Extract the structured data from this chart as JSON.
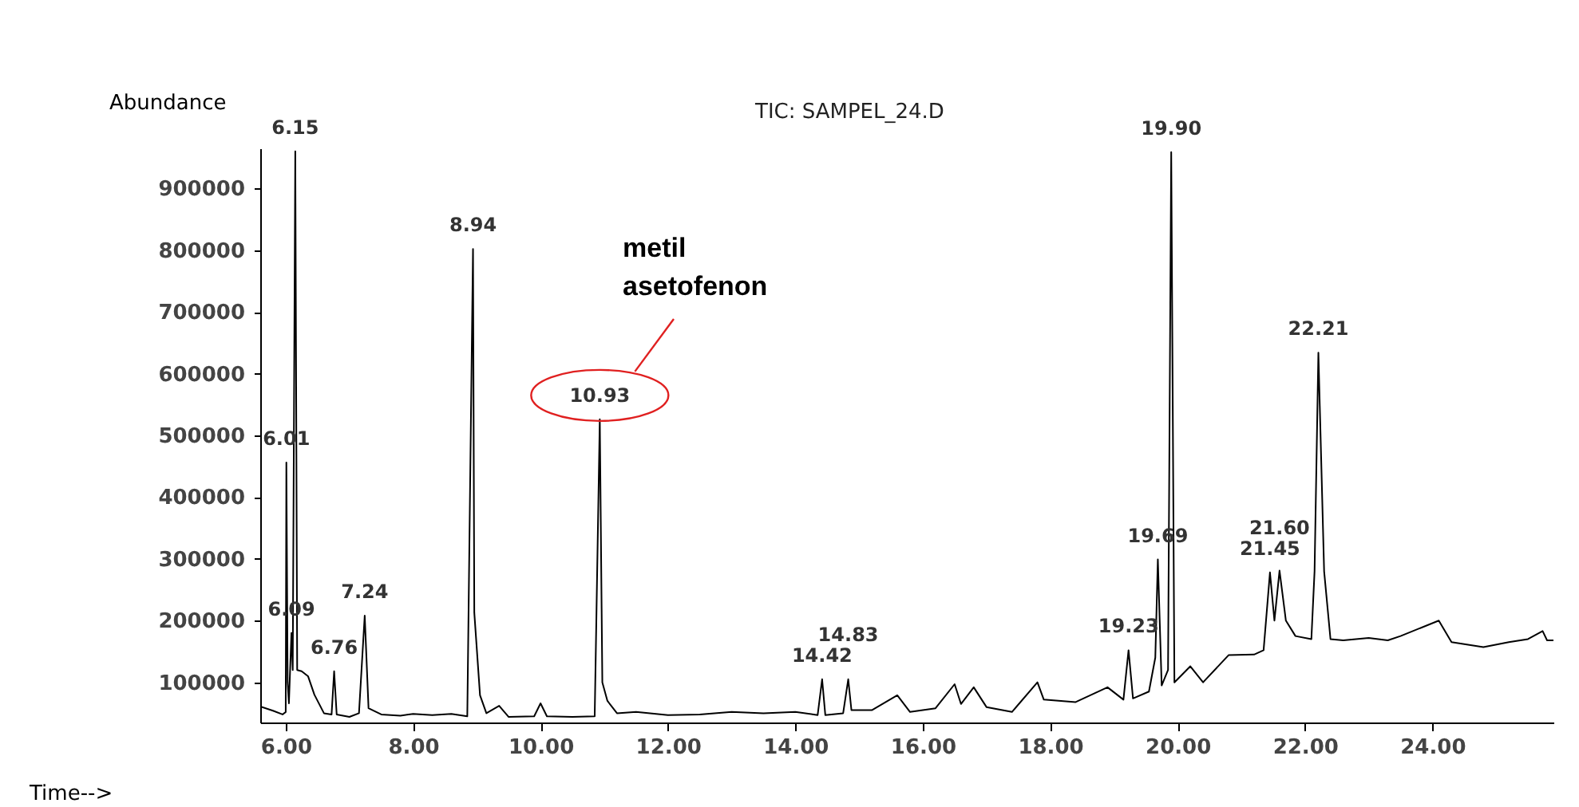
{
  "chart_data": {
    "type": "line",
    "title": "TIC: SAMPEL_24.D",
    "xlabel": "Time-->",
    "ylabel": "Abundance",
    "xlim": [
      5.6,
      25.9
    ],
    "xticks": [
      {
        "value": 6,
        "label": "6.00"
      },
      {
        "value": 8,
        "label": "8.00"
      },
      {
        "value": 10,
        "label": "10.00"
      },
      {
        "value": 12,
        "label": "12.00"
      },
      {
        "value": 14,
        "label": "14.00"
      },
      {
        "value": 16,
        "label": "16.00"
      },
      {
        "value": 18,
        "label": "18.00"
      },
      {
        "value": 20,
        "label": "20.00"
      },
      {
        "value": 22,
        "label": "22.00"
      },
      {
        "value": 24,
        "label": "24.00"
      }
    ],
    "ylim": [
      35000,
      965000
    ],
    "yticks": [
      100000,
      200000,
      300000,
      400000,
      500000,
      600000,
      700000,
      800000,
      900000
    ],
    "grid": false,
    "legend": false,
    "marker": "none",
    "line_style": "solid",
    "series": [
      {
        "color": "#000000",
        "x": [
          5.6,
          5.8,
          5.95,
          6.0,
          6.01,
          6.03,
          6.05,
          6.09,
          6.11,
          6.15,
          6.18,
          6.25,
          6.35,
          6.45,
          6.6,
          6.72,
          6.76,
          6.8,
          7.0,
          7.15,
          7.24,
          7.3,
          7.5,
          7.8,
          8.0,
          8.3,
          8.6,
          8.85,
          8.94,
          8.96,
          9.05,
          9.15,
          9.35,
          9.5,
          9.9,
          10.0,
          10.1,
          10.5,
          10.85,
          10.93,
          10.97,
          11.05,
          11.2,
          11.5,
          12.0,
          12.5,
          13.0,
          13.5,
          14.0,
          14.35,
          14.42,
          14.47,
          14.75,
          14.83,
          14.88,
          15.2,
          15.6,
          15.8,
          16.2,
          16.5,
          16.6,
          16.8,
          17.0,
          17.4,
          17.8,
          17.9,
          18.4,
          18.9,
          19.15,
          19.23,
          19.3,
          19.55,
          19.65,
          19.69,
          19.75,
          19.85,
          19.9,
          19.95,
          20.2,
          20.4,
          20.8,
          21.2,
          21.35,
          21.45,
          21.52,
          21.6,
          21.7,
          21.85,
          22.1,
          22.15,
          22.21,
          22.3,
          22.4,
          22.6,
          23.0,
          23.3,
          23.5,
          24.1,
          24.3,
          24.8,
          25.2,
          25.5,
          25.73,
          25.8,
          25.9
        ],
        "values": [
          61000,
          54000,
          48000,
          52000,
          456000,
          100000,
          66000,
          180000,
          120000,
          960000,
          120000,
          118000,
          110000,
          80000,
          50000,
          48000,
          118000,
          48000,
          44000,
          50000,
          208000,
          58000,
          48000,
          46000,
          49000,
          47000,
          49000,
          45000,
          802000,
          213000,
          79000,
          50000,
          62000,
          44000,
          45000,
          66000,
          45000,
          44000,
          45000,
          526000,
          100000,
          70000,
          50000,
          52000,
          47000,
          48000,
          52000,
          50000,
          52000,
          47000,
          105000,
          47000,
          50000,
          105000,
          55000,
          55000,
          79000,
          52000,
          58000,
          97000,
          65000,
          92000,
          60000,
          52000,
          100000,
          72000,
          68000,
          92000,
          72000,
          152000,
          74000,
          85000,
          140000,
          299000,
          95000,
          120000,
          959000,
          100000,
          126000,
          100000,
          144000,
          145000,
          152000,
          278000,
          200000,
          281000,
          200000,
          175000,
          170000,
          280000,
          634000,
          280000,
          170000,
          168000,
          172000,
          168000,
          175000,
          200000,
          165000,
          157000,
          165000,
          170000,
          183000,
          168000,
          168000
        ]
      }
    ],
    "annotations": [
      {
        "text": "6.01",
        "x": 6.01,
        "y": 456000
      },
      {
        "text": "6.09",
        "x": 6.09,
        "y": 180000
      },
      {
        "text": "6.15",
        "x": 6.15,
        "y": 960000
      },
      {
        "text": "6.76",
        "x": 6.76,
        "y": 118000
      },
      {
        "text": "7.24",
        "x": 7.24,
        "y": 208000
      },
      {
        "text": "8.94",
        "x": 8.94,
        "y": 802000
      },
      {
        "text": "10.93",
        "x": 10.93,
        "y": 526000
      },
      {
        "text": "14.42",
        "x": 14.42,
        "y": 105000
      },
      {
        "text": "14.83",
        "x": 14.83,
        "y": 105000
      },
      {
        "text": "19.23",
        "x": 19.23,
        "y": 152000
      },
      {
        "text": "19.69",
        "x": 19.69,
        "y": 299000
      },
      {
        "text": "19.90",
        "x": 19.9,
        "y": 959000
      },
      {
        "text": "21.45",
        "x": 21.45,
        "y": 278000
      },
      {
        "text": "21.60",
        "x": 21.6,
        "y": 281000
      },
      {
        "text": "22.21",
        "x": 22.21,
        "y": 634000
      },
      "metil asetofenon"
    ]
  }
}
